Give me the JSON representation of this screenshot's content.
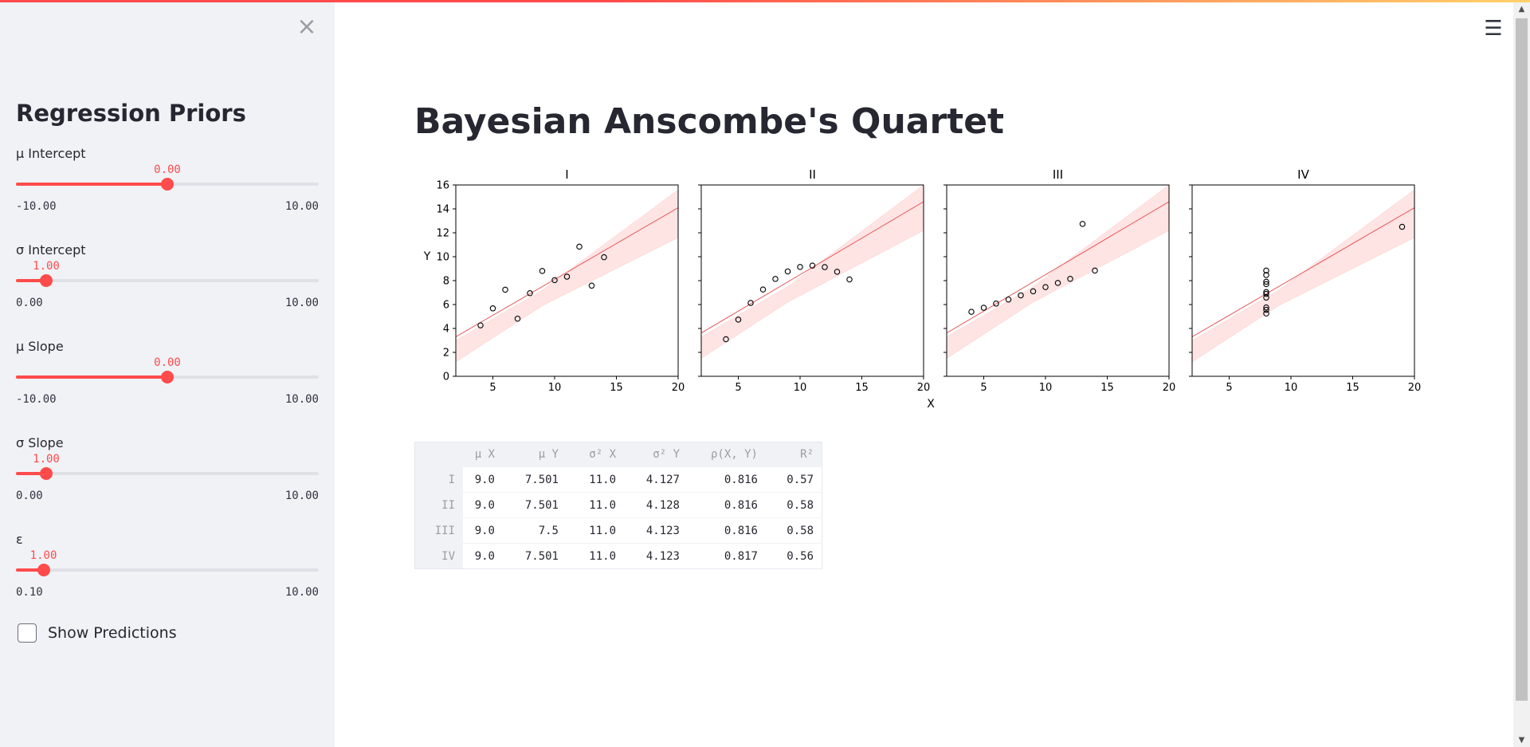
{
  "colors": {
    "accent": "#ff4b4b",
    "sidebar_bg": "#f0f2f6",
    "text": "#262730",
    "band": "#ff4b4b"
  },
  "sidebar": {
    "close_icon": "close-icon",
    "title": "Regression Priors",
    "sliders": [
      {
        "label": "μ Intercept",
        "value": "0.00",
        "min": "-10.00",
        "max": "10.00",
        "level": 0.5
      },
      {
        "label": "σ Intercept",
        "value": "1.00",
        "min": "0.00",
        "max": "10.00",
        "level": 0.1
      },
      {
        "label": "μ Slope",
        "value": "0.00",
        "min": "-10.00",
        "max": "10.00",
        "level": 0.5
      },
      {
        "label": "σ Slope",
        "value": "1.00",
        "min": "0.00",
        "max": "10.00",
        "level": 0.1
      },
      {
        "label": "ε",
        "value": "1.00",
        "min": "0.10",
        "max": "10.00",
        "level": 0.0909
      }
    ],
    "checkbox": {
      "label": "Show Predictions",
      "checked": false
    }
  },
  "header": {
    "menu_icon": "hamburger-menu-icon"
  },
  "main": {
    "title": "Bayesian Anscombe's Quartet"
  },
  "chart_data": {
    "type": "scatter",
    "xlabel": "X",
    "ylabel": "Y",
    "xlim": [
      2,
      20
    ],
    "ylim": [
      0,
      16
    ],
    "xticks": [
      5,
      10,
      15,
      20
    ],
    "yticks": [
      0,
      2,
      4,
      6,
      8,
      10,
      12,
      14,
      16
    ],
    "grid": false,
    "panels": [
      {
        "title": "I",
        "x": [
          10,
          8,
          13,
          9,
          11,
          14,
          6,
          4,
          12,
          7,
          5
        ],
        "y": [
          8.04,
          6.95,
          7.58,
          8.81,
          8.33,
          9.96,
          7.24,
          4.26,
          10.84,
          4.82,
          5.68
        ],
        "fit_line": {
          "intercept": 2.1,
          "slope": 0.6
        },
        "band": {
          "lower": [
            [
              2,
              1.2
            ],
            [
              9,
              5.9
            ],
            [
              20,
              11.6
            ]
          ],
          "upper": [
            [
              2,
              3.0
            ],
            [
              9,
              7.2
            ],
            [
              20,
              15.6
            ]
          ]
        }
      },
      {
        "title": "II",
        "x": [
          10,
          8,
          13,
          9,
          11,
          14,
          6,
          4,
          12,
          7,
          5
        ],
        "y": [
          9.14,
          8.14,
          8.74,
          8.77,
          9.26,
          8.1,
          6.13,
          3.1,
          9.13,
          7.26,
          4.74
        ],
        "fit_line": {
          "intercept": 2.4,
          "slope": 0.61
        },
        "band": {
          "lower": [
            [
              2,
              1.5
            ],
            [
              9,
              6.2
            ],
            [
              20,
              12.2
            ]
          ],
          "upper": [
            [
              2,
              3.3
            ],
            [
              9,
              7.5
            ],
            [
              20,
              16.0
            ]
          ]
        }
      },
      {
        "title": "III",
        "x": [
          10,
          8,
          13,
          9,
          11,
          14,
          6,
          4,
          12,
          7,
          5
        ],
        "y": [
          7.46,
          6.77,
          12.74,
          7.11,
          7.81,
          8.84,
          6.08,
          5.39,
          8.15,
          6.42,
          5.73
        ],
        "fit_line": {
          "intercept": 2.4,
          "slope": 0.61
        },
        "band": {
          "lower": [
            [
              2,
              1.5
            ],
            [
              9,
              6.2
            ],
            [
              20,
              12.2
            ]
          ],
          "upper": [
            [
              2,
              3.3
            ],
            [
              9,
              7.5
            ],
            [
              20,
              16.0
            ]
          ]
        }
      },
      {
        "title": "IV",
        "x": [
          8,
          8,
          8,
          8,
          8,
          8,
          8,
          19,
          8,
          8,
          8
        ],
        "y": [
          6.58,
          5.76,
          7.71,
          8.84,
          8.47,
          7.04,
          5.25,
          12.5,
          5.56,
          7.91,
          6.89
        ],
        "fit_line": {
          "intercept": 2.1,
          "slope": 0.6
        },
        "band": {
          "lower": [
            [
              2,
              1.2
            ],
            [
              9,
              5.9
            ],
            [
              20,
              11.6
            ]
          ],
          "upper": [
            [
              2,
              3.0
            ],
            [
              9,
              7.2
            ],
            [
              20,
              15.6
            ]
          ]
        }
      }
    ]
  },
  "table": {
    "headers": [
      "",
      "μ X",
      "μ Y",
      "σ² X",
      "σ² Y",
      "ρ(X, Y)",
      "R²"
    ],
    "rows": [
      [
        "I",
        "9.0",
        "7.501",
        "11.0",
        "4.127",
        "0.816",
        "0.57"
      ],
      [
        "II",
        "9.0",
        "7.501",
        "11.0",
        "4.128",
        "0.816",
        "0.58"
      ],
      [
        "III",
        "9.0",
        "7.5",
        "11.0",
        "4.123",
        "0.816",
        "0.58"
      ],
      [
        "IV",
        "9.0",
        "7.501",
        "11.0",
        "4.123",
        "0.817",
        "0.56"
      ]
    ]
  }
}
